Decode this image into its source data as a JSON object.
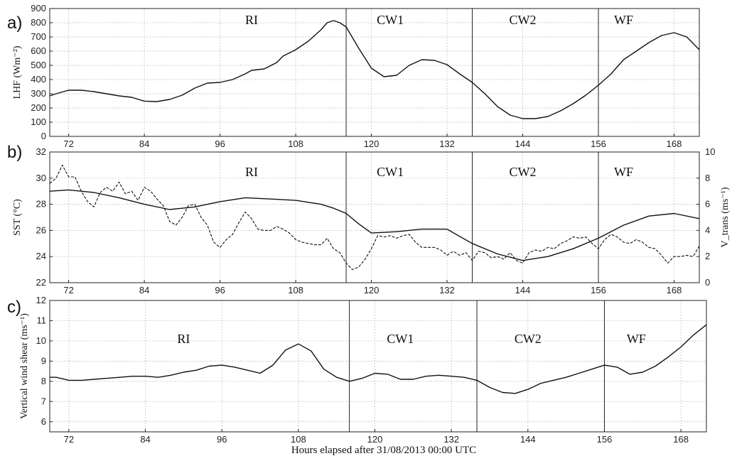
{
  "xlabel": "Hours elapsed after 31/08/2013 00:00 UTC",
  "chart_data": [
    {
      "panel": "a)",
      "type": "line",
      "ylabel": "LHF (Wm⁻²)",
      "ylim": [
        0,
        900
      ],
      "yticks": [
        0,
        100,
        200,
        300,
        400,
        500,
        600,
        700,
        800,
        900
      ],
      "xlim": [
        69,
        172
      ],
      "xticks": [
        72,
        84,
        96,
        108,
        120,
        132,
        144,
        156,
        168
      ],
      "grid": true,
      "phase_boundaries": [
        116,
        136,
        156
      ],
      "phases": [
        {
          "label": "RI",
          "x": 101
        },
        {
          "label": "CW1",
          "x": 123
        },
        {
          "label": "CW2",
          "x": 144
        },
        {
          "label": "WF",
          "x": 160
        }
      ],
      "series": [
        {
          "style": "solid",
          "x": [
            69,
            70,
            72,
            74,
            76,
            78,
            80,
            82,
            84,
            86,
            88,
            90,
            92,
            94,
            96,
            98,
            100,
            101,
            103,
            105,
            106,
            108,
            110,
            112,
            113,
            114,
            115,
            116,
            118,
            120,
            122,
            124,
            126,
            128,
            130,
            132,
            134,
            136,
            138,
            140,
            142,
            144,
            146,
            148,
            150,
            152,
            154,
            156,
            158,
            160,
            162,
            164,
            166,
            168,
            170,
            172
          ],
          "y": [
            285,
            300,
            325,
            325,
            315,
            300,
            285,
            275,
            248,
            245,
            260,
            290,
            340,
            375,
            380,
            400,
            440,
            465,
            475,
            520,
            565,
            610,
            670,
            750,
            800,
            815,
            800,
            770,
            620,
            480,
            420,
            430,
            500,
            540,
            535,
            505,
            440,
            380,
            300,
            210,
            150,
            125,
            125,
            140,
            180,
            230,
            290,
            360,
            440,
            540,
            600,
            660,
            710,
            730,
            700,
            610
          ]
        }
      ]
    },
    {
      "panel": "b)",
      "type": "line",
      "ylabel": "SST (°C)",
      "ylim": [
        22,
        32
      ],
      "yticks": [
        22,
        24,
        26,
        28,
        30,
        32
      ],
      "y2label": "V_trans (ms⁻¹)",
      "y2lim": [
        0,
        10
      ],
      "y2ticks": [
        0,
        2,
        4,
        6,
        8,
        10
      ],
      "xlim": [
        69,
        172
      ],
      "xticks": [
        72,
        84,
        96,
        108,
        120,
        132,
        144,
        156,
        168
      ],
      "grid": true,
      "phase_boundaries": [
        116,
        136,
        156
      ],
      "phases": [
        {
          "label": "RI",
          "x": 101
        },
        {
          "label": "CW1",
          "x": 123
        },
        {
          "label": "CW2",
          "x": 144
        },
        {
          "label": "WF",
          "x": 160
        }
      ],
      "series": [
        {
          "style": "solid",
          "axis": "left",
          "x": [
            69,
            72,
            76,
            80,
            84,
            88,
            92,
            96,
            100,
            104,
            108,
            112,
            114,
            116,
            118,
            120,
            124,
            128,
            132,
            136,
            140,
            144,
            148,
            152,
            156,
            160,
            164,
            168,
            172
          ],
          "y": [
            29.0,
            29.1,
            28.9,
            28.5,
            28.0,
            27.6,
            27.8,
            28.2,
            28.5,
            28.4,
            28.3,
            28.0,
            27.7,
            27.3,
            26.5,
            25.8,
            25.9,
            26.1,
            26.1,
            25.0,
            24.2,
            23.7,
            24.0,
            24.6,
            25.4,
            26.4,
            27.1,
            27.3,
            26.9
          ]
        },
        {
          "style": "dashed",
          "axis": "right",
          "x": [
            69,
            70,
            71,
            72,
            73,
            74,
            75,
            76,
            77,
            78,
            79,
            80,
            81,
            82,
            83,
            84,
            85,
            86,
            87,
            88,
            89,
            90,
            91,
            92,
            93,
            94,
            95,
            96,
            97,
            98,
            99,
            100,
            101,
            102,
            103,
            104,
            105,
            106,
            107,
            108,
            109,
            110,
            111,
            112,
            113,
            114,
            115,
            116,
            117,
            118,
            119,
            120,
            121,
            122,
            123,
            124,
            125,
            126,
            127,
            128,
            129,
            130,
            131,
            132,
            133,
            134,
            135,
            136,
            137,
            138,
            139,
            140,
            141,
            142,
            143,
            144,
            145,
            146,
            147,
            148,
            149,
            150,
            151,
            152,
            153,
            154,
            155,
            156,
            157,
            158,
            159,
            160,
            161,
            162,
            163,
            164,
            165,
            166,
            167,
            168,
            169,
            170,
            171,
            172
          ],
          "y": [
            7.6,
            8.0,
            9.0,
            8.1,
            8.1,
            7.0,
            6.2,
            5.8,
            6.9,
            7.3,
            7.0,
            7.7,
            6.8,
            7.0,
            6.3,
            7.3,
            7.0,
            6.4,
            5.9,
            4.7,
            4.4,
            5.0,
            5.9,
            6.0,
            5.0,
            4.4,
            3.1,
            2.7,
            3.3,
            3.7,
            4.6,
            5.4,
            4.9,
            4.1,
            4.0,
            4.0,
            4.3,
            4.1,
            3.8,
            3.3,
            3.1,
            3.0,
            2.9,
            2.9,
            3.4,
            2.6,
            2.3,
            1.5,
            1.0,
            1.2,
            1.8,
            2.6,
            3.6,
            3.5,
            3.6,
            3.4,
            3.6,
            3.7,
            3.1,
            2.7,
            2.7,
            2.7,
            2.5,
            2.1,
            2.4,
            2.1,
            2.3,
            1.7,
            2.4,
            2.3,
            1.9,
            2.0,
            1.8,
            2.3,
            1.7,
            1.5,
            2.3,
            2.5,
            2.4,
            2.7,
            2.6,
            3.0,
            3.2,
            3.5,
            3.4,
            3.5,
            3.0,
            2.6,
            3.3,
            3.7,
            3.5,
            3.1,
            3.0,
            3.3,
            3.1,
            2.7,
            2.6,
            2.1,
            1.5,
            2.0,
            2.0,
            2.1,
            2.0,
            2.8
          ]
        }
      ]
    },
    {
      "panel": "c)",
      "type": "line",
      "ylabel": "Vertical wind shear (ms⁻¹)",
      "ylim": [
        5.5,
        12
      ],
      "yticks": [
        6,
        7,
        8,
        9,
        10,
        11,
        12
      ],
      "xlim": [
        69,
        172
      ],
      "xticks": [
        72,
        84,
        96,
        108,
        120,
        132,
        144,
        156,
        168
      ],
      "grid": true,
      "phase_boundaries": [
        116,
        136,
        156
      ],
      "phases": [
        {
          "label": "RI",
          "x": 90
        },
        {
          "label": "CW1",
          "x": 124
        },
        {
          "label": "CW2",
          "x": 144
        },
        {
          "label": "WF",
          "x": 161
        }
      ],
      "series": [
        {
          "style": "solid",
          "x": [
            69,
            70,
            72,
            74,
            76,
            78,
            80,
            82,
            84,
            86,
            88,
            90,
            92,
            94,
            96,
            98,
            100,
            102,
            104,
            106,
            108,
            110,
            112,
            114,
            116,
            118,
            120,
            122,
            124,
            126,
            128,
            130,
            132,
            134,
            136,
            138,
            140,
            142,
            144,
            146,
            148,
            150,
            152,
            154,
            156,
            158,
            160,
            162,
            164,
            166,
            168,
            170,
            172
          ],
          "y": [
            8.2,
            8.2,
            8.05,
            8.05,
            8.1,
            8.15,
            8.2,
            8.25,
            8.25,
            8.2,
            8.3,
            8.45,
            8.55,
            8.75,
            8.8,
            8.7,
            8.55,
            8.4,
            8.8,
            9.55,
            9.85,
            9.5,
            8.6,
            8.2,
            8.0,
            8.15,
            8.4,
            8.35,
            8.1,
            8.1,
            8.25,
            8.3,
            8.25,
            8.2,
            8.05,
            7.7,
            7.45,
            7.4,
            7.6,
            7.9,
            8.05,
            8.2,
            8.4,
            8.6,
            8.8,
            8.7,
            8.35,
            8.45,
            8.75,
            9.2,
            9.7,
            10.3,
            10.8
          ]
        }
      ]
    }
  ]
}
